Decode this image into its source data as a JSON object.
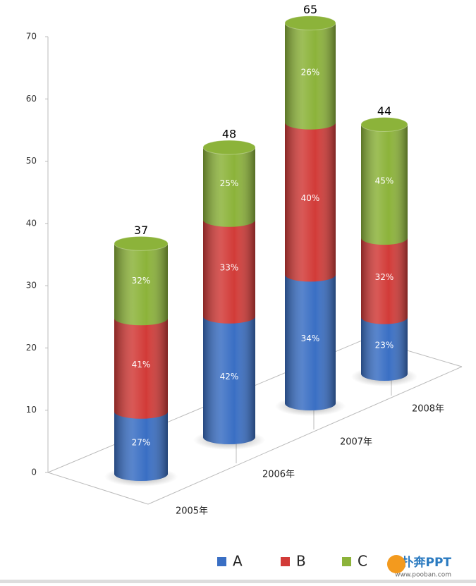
{
  "chart_data": {
    "type": "bar3d",
    "categories": [
      "2005年",
      "2006年",
      "2007年",
      "2008年"
    ],
    "series": [
      {
        "name": "A",
        "color": "#3a6fc4",
        "values": [
          10,
          20,
          22,
          10
        ],
        "share_labels": [
          "27%",
          "42%",
          "34%",
          "23%"
        ]
      },
      {
        "name": "B",
        "color": "#d23b38",
        "values": [
          15,
          16,
          26,
          14
        ],
        "share_labels": [
          "41%",
          "33%",
          "40%",
          "32%"
        ]
      },
      {
        "name": "C",
        "color": "#8cb33a",
        "values": [
          12,
          12,
          17,
          20
        ],
        "share_labels": [
          "32%",
          "25%",
          "26%",
          "45%"
        ]
      }
    ],
    "totals": [
      37,
      48,
      65,
      44
    ],
    "ylim": [
      0,
      70
    ],
    "yticks": [
      0,
      10,
      20,
      30,
      40,
      50,
      60,
      70
    ],
    "stacked": true,
    "legend": "bottom"
  },
  "watermark": {
    "brand": "扑奔PPT",
    "url": "www.pooban.com"
  }
}
